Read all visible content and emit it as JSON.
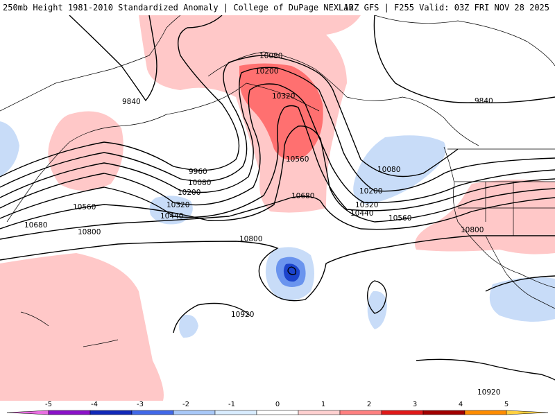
{
  "header": {
    "title_left": "250mb Height 1981-2010 Standardized Anomaly | College of DuPage NEXLAB",
    "title_right": "12Z GFS | F255 Valid: 03Z FRI NOV 28 2025"
  },
  "contour_labels": [
    "9840",
    "9840",
    "9960",
    "10080",
    "10080",
    "10080",
    "10200",
    "10200",
    "10200",
    "10320",
    "10320",
    "10320",
    "10440",
    "10440",
    "10560",
    "10560",
    "10560",
    "10680",
    "10680",
    "10800",
    "10800",
    "10800",
    "10920",
    "10920"
  ],
  "legend": {
    "ticks": [
      "-5",
      "-4",
      "-3",
      "-2",
      "-1",
      "0",
      "1",
      "2",
      "3",
      "4",
      "5"
    ],
    "colors": [
      "#e86ee0",
      "#8a10c8",
      "#1028b8",
      "#4068e8",
      "#a8c8f8",
      "#d8ecff",
      "#ffffff",
      "#ffd0d0",
      "#ff8080",
      "#e01818",
      "#a00000",
      "#ff8c00",
      "#ffd040"
    ]
  },
  "colors": {
    "positive_light": "#ffc8c8",
    "positive_medium": "#ff7070",
    "negative_light": "#c8dcf8",
    "negative_medium": "#6a94ee",
    "negative_strong": "#1c44cc",
    "contour": "#000000",
    "coast": "#000000"
  }
}
